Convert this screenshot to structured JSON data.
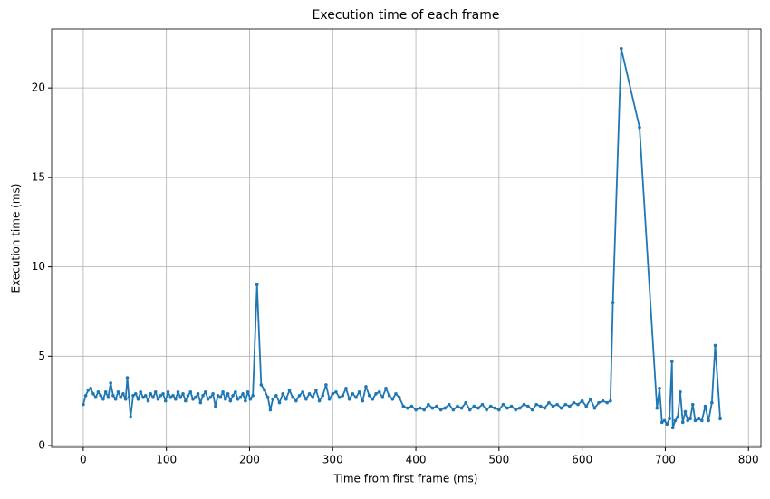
{
  "chart_data": {
    "type": "line",
    "title": "Execution time of each frame",
    "x_label": "Time from first frame (ms)",
    "y_label": "Execution time (ms)",
    "x": [
      0,
      3,
      6,
      9,
      12,
      15,
      18,
      21,
      24,
      27,
      30,
      33,
      36,
      39,
      42,
      45,
      48,
      51,
      53,
      55,
      57,
      60,
      63,
      66,
      69,
      72,
      75,
      78,
      81,
      84,
      87,
      90,
      93,
      96,
      99,
      102,
      105,
      108,
      111,
      114,
      117,
      120,
      123,
      126,
      129,
      132,
      135,
      138,
      141,
      144,
      147,
      150,
      153,
      156,
      159,
      162,
      165,
      168,
      171,
      174,
      177,
      180,
      183,
      186,
      189,
      192,
      195,
      198,
      201,
      204,
      209,
      214,
      218,
      222,
      225,
      228,
      232,
      236,
      240,
      244,
      248,
      252,
      256,
      260,
      264,
      268,
      272,
      276,
      280,
      284,
      288,
      292,
      296,
      300,
      304,
      308,
      312,
      316,
      320,
      324,
      328,
      332,
      336,
      340,
      344,
      348,
      352,
      356,
      360,
      364,
      368,
      372,
      376,
      380,
      385,
      390,
      395,
      400,
      405,
      410,
      415,
      420,
      425,
      430,
      435,
      440,
      445,
      450,
      455,
      460,
      465,
      470,
      475,
      480,
      485,
      490,
      495,
      500,
      505,
      510,
      515,
      520,
      525,
      530,
      535,
      540,
      545,
      550,
      555,
      560,
      565,
      570,
      575,
      580,
      585,
      590,
      595,
      600,
      605,
      610,
      615,
      620,
      625,
      630,
      634,
      637,
      647,
      669,
      690,
      693,
      696,
      699,
      702,
      705,
      708,
      709,
      712,
      715,
      718,
      721,
      724,
      727,
      730,
      733,
      736,
      740,
      744,
      748,
      752,
      756,
      760,
      766
    ],
    "series": [
      {
        "color": "#1f77b4",
        "values": [
          2.3,
          2.8,
          3.1,
          3.2,
          2.9,
          2.7,
          3.0,
          2.8,
          2.6,
          3.0,
          2.7,
          3.5,
          2.8,
          2.6,
          3.0,
          2.7,
          2.9,
          2.6,
          3.8,
          2.7,
          1.6,
          2.8,
          2.9,
          2.6,
          3.0,
          2.7,
          2.8,
          2.5,
          2.9,
          2.7,
          3.0,
          2.6,
          2.8,
          2.9,
          2.5,
          3.0,
          2.7,
          2.8,
          2.6,
          3.0,
          2.7,
          2.9,
          2.5,
          2.8,
          3.0,
          2.6,
          2.7,
          2.9,
          2.4,
          2.8,
          3.0,
          2.6,
          2.7,
          2.9,
          2.2,
          2.8,
          2.7,
          3.0,
          2.6,
          2.9,
          2.5,
          2.8,
          3.0,
          2.6,
          2.7,
          2.9,
          2.5,
          3.0,
          2.6,
          2.8,
          9.0,
          3.4,
          3.1,
          2.7,
          2.0,
          2.6,
          2.8,
          2.4,
          2.9,
          2.6,
          3.1,
          2.7,
          2.5,
          2.8,
          3.0,
          2.6,
          2.9,
          2.7,
          3.1,
          2.5,
          2.8,
          3.4,
          2.6,
          2.9,
          3.0,
          2.7,
          2.8,
          3.2,
          2.6,
          2.9,
          2.7,
          3.0,
          2.5,
          3.3,
          2.8,
          2.6,
          2.9,
          3.0,
          2.7,
          3.2,
          2.8,
          2.6,
          2.9,
          2.7,
          2.2,
          2.1,
          2.2,
          2.0,
          2.1,
          2.0,
          2.3,
          2.1,
          2.2,
          2.0,
          2.1,
          2.3,
          2.0,
          2.2,
          2.1,
          2.4,
          2.0,
          2.2,
          2.1,
          2.3,
          2.0,
          2.2,
          2.1,
          2.0,
          2.3,
          2.1,
          2.2,
          2.0,
          2.1,
          2.3,
          2.2,
          2.0,
          2.3,
          2.2,
          2.1,
          2.4,
          2.2,
          2.3,
          2.1,
          2.3,
          2.2,
          2.4,
          2.3,
          2.5,
          2.2,
          2.6,
          2.1,
          2.4,
          2.5,
          2.4,
          2.5,
          8.0,
          22.2,
          17.8,
          2.1,
          3.2,
          1.3,
          1.4,
          1.2,
          1.5,
          4.7,
          1.0,
          1.4,
          1.6,
          3.0,
          1.3,
          1.9,
          1.4,
          1.5,
          2.3,
          1.4,
          1.5,
          1.4,
          2.2,
          1.4,
          2.4,
          5.6,
          1.5
        ]
      }
    ],
    "xlim": [
      -38,
      815
    ],
    "ylim": [
      -0.1,
      23.3
    ],
    "xticks": [
      0,
      100,
      200,
      300,
      400,
      500,
      600,
      700,
      800
    ],
    "yticks": [
      0,
      5,
      10,
      15,
      20
    ],
    "grid": true
  }
}
